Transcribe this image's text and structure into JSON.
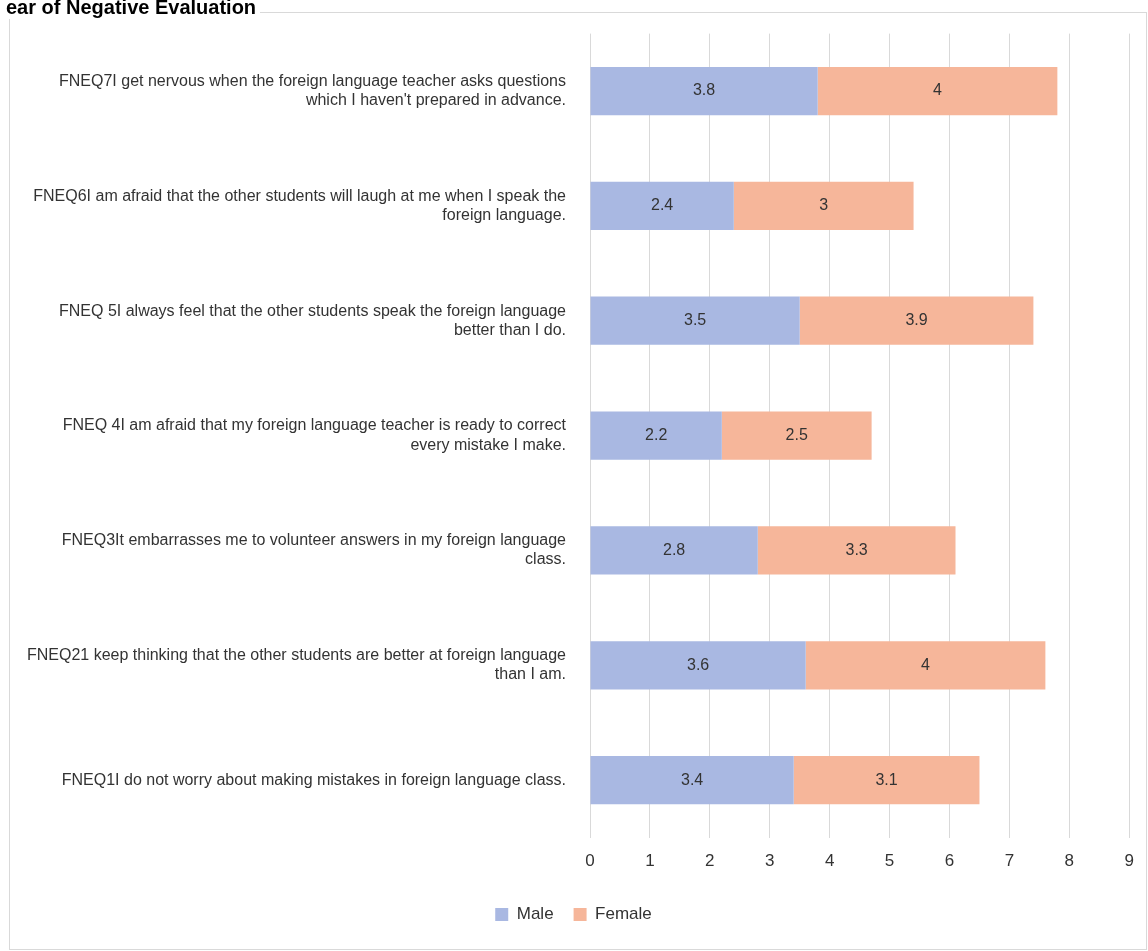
{
  "chart_data": {
    "type": "bar",
    "orientation": "horizontal",
    "stacked": true,
    "title": "ear of Negative Evaluation",
    "categories": [
      "FNEQ7I get nervous when the foreign language teacher asks questions which I haven't prepared in advance.",
      "FNEQ6I am afraid that the other students will laugh at me when I speak the foreign language.",
      "FNEQ 5I always feel that the other students speak the foreign language better than I do.",
      "FNEQ 4I am afraid that my foreign language teacher is ready to correct every mistake I make.",
      "FNEQ3It embarrasses me to volunteer answers in my foreign language class.",
      "FNEQ21 keep thinking that the other students are better at foreign language than I am.",
      "FNEQ1I do not worry about making mistakes in foreign language class."
    ],
    "series": [
      {
        "name": "Male",
        "color": "#a9b8e2",
        "values": [
          3.8,
          2.4,
          3.5,
          2.2,
          2.8,
          3.6,
          3.4
        ]
      },
      {
        "name": "Female",
        "color": "#f6b69a",
        "values": [
          4,
          3,
          3.9,
          2.5,
          3.3,
          4,
          3.1
        ]
      }
    ],
    "xlim": [
      0,
      9
    ],
    "xticks": [
      0,
      1,
      2,
      3,
      4,
      5,
      6,
      7,
      8,
      9
    ],
    "grid": "x",
    "legend": "bottom",
    "data_labels": true
  }
}
